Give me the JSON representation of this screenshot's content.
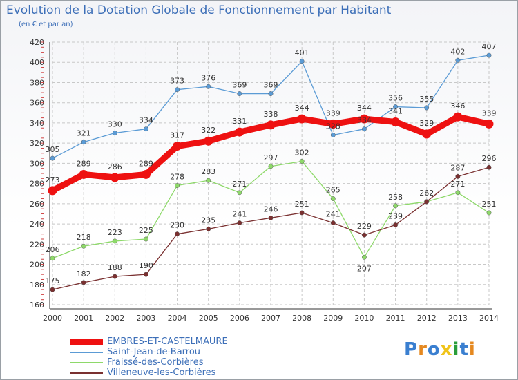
{
  "header": {
    "title": "Evolution de la Dotation Globale de Fonctionnement par Habitant",
    "subtitle": "(en € et par an)"
  },
  "logo": {
    "text": "Proxiti",
    "colors": [
      "#3a7fd0",
      "#e5881f",
      "#3a7fd0",
      "#f0c419",
      "#2a9d3a",
      "#3a7fd0",
      "#e5881f"
    ]
  },
  "chart_data": {
    "type": "line",
    "title": "Evolution de la Dotation Globale de Fonctionnement par Habitant",
    "subtitle": "(en € et par an)",
    "x": [
      "2000",
      "2001",
      "2002",
      "2003",
      "2004",
      "2005",
      "2006",
      "2007",
      "2008",
      "2009",
      "2010",
      "2011",
      "2012",
      "2013",
      "2014"
    ],
    "ylim": [
      160,
      420
    ],
    "yticks": [
      160,
      180,
      200,
      220,
      240,
      260,
      280,
      300,
      320,
      340,
      360,
      380,
      400,
      420
    ],
    "grid": true,
    "legend_position": "bottom-left",
    "series": [
      {
        "name": "EMBRES-ET-CASTELMAURE",
        "color": "#ee1111",
        "emphasis": true,
        "values": [
          273,
          289,
          286,
          289,
          317,
          322,
          331,
          338,
          344,
          339,
          344,
          341,
          329,
          346,
          339
        ]
      },
      {
        "name": "Saint-Jean-de-Barrou",
        "color": "#5b9bd5",
        "values": [
          305,
          321,
          330,
          334,
          373,
          376,
          369,
          369,
          401,
          328,
          334,
          356,
          355,
          402,
          407
        ]
      },
      {
        "name": "Fraissé-des-Corbières",
        "color": "#8ed96a",
        "values": [
          206,
          218,
          223,
          225,
          278,
          283,
          271,
          297,
          302,
          265,
          207,
          258,
          262,
          271,
          251
        ]
      },
      {
        "name": "Villeneuve-les-Corbières",
        "color": "#7a3030",
        "values": [
          175,
          182,
          188,
          190,
          230,
          235,
          241,
          246,
          251,
          241,
          229,
          239,
          262,
          287,
          296
        ]
      }
    ],
    "labels": {
      "Saint-Jean-de-Barrou": [
        305,
        321,
        330,
        334,
        373,
        376,
        369,
        369,
        401,
        328,
        334,
        356,
        355,
        402,
        407
      ],
      "EMBRES-ET-CASTELMAURE": [
        273,
        289,
        286,
        289,
        317,
        322,
        331,
        338,
        344,
        339,
        344,
        341,
        329,
        346,
        339
      ],
      "Fraissé-des-Corbières": [
        206,
        218,
        223,
        225,
        278,
        283,
        271,
        297,
        302,
        265,
        207,
        258,
        null,
        271,
        251
      ],
      "Villeneuve-les-Corbières": [
        175,
        182,
        188,
        190,
        230,
        235,
        241,
        246,
        251,
        241,
        229,
        239,
        262,
        287,
        296
      ]
    }
  }
}
